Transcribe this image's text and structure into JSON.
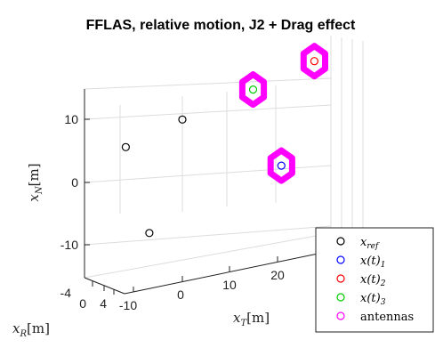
{
  "chart_data": {
    "type": "scatter",
    "title": "FFLAS, relative motion, J2 + Drag effect",
    "axes": {
      "x": {
        "label_main": "x",
        "label_sub": "T",
        "label_unit": "[m]",
        "ticks": [
          "-10",
          "0",
          "10",
          "20"
        ]
      },
      "y": {
        "label_main": "x",
        "label_sub": "R",
        "label_unit": "[m]",
        "ticks": [
          "-4",
          "0",
          "4"
        ]
      },
      "z": {
        "label_main": "x",
        "label_sub": "N",
        "label_unit": "[m]",
        "ticks": [
          "10",
          "0",
          "-10"
        ]
      }
    },
    "grid": true,
    "view": "3d",
    "legend": {
      "placement": "bottom-right",
      "entries": [
        {
          "main": "x",
          "sub": "ref",
          "suffix": "",
          "color": "#000000"
        },
        {
          "main": "x(t)",
          "sub": "1",
          "suffix": "",
          "color": "#0000ff"
        },
        {
          "main": "x(t)",
          "sub": "2",
          "suffix": "",
          "color": "#ff0000"
        },
        {
          "main": "x(t)",
          "sub": "3",
          "suffix": "",
          "color": "#00cc00"
        },
        {
          "main": "antennas",
          "sub": "",
          "suffix": "",
          "color": "#ff00ff"
        }
      ]
    },
    "series": [
      {
        "name": "x_ref",
        "color": "#000000",
        "points": [
          {
            "xT": -12,
            "xR": 0,
            "xN": 5
          },
          {
            "xT": 0,
            "xR": 0,
            "xN": 7
          },
          {
            "xT": -7,
            "xR": 0,
            "xN": -5
          }
        ]
      },
      {
        "name": "x(t)_1",
        "color": "#0000ff",
        "points": [
          {
            "xT": 21,
            "xR": 0,
            "xN": 0
          }
        ]
      },
      {
        "name": "x(t)_2",
        "color": "#ff0000",
        "points": [
          {
            "xT": 28,
            "xR": 0,
            "xN": 11
          }
        ]
      },
      {
        "name": "x(t)_3",
        "color": "#00cc00",
        "points": [
          {
            "xT": 15,
            "xR": 0,
            "xN": 9
          }
        ]
      },
      {
        "name": "antennas",
        "color": "#ff00ff",
        "marker": "hexagon",
        "points": [
          {
            "xT": 21,
            "xR": 0,
            "xN": 0
          },
          {
            "xT": 28,
            "xR": 0,
            "xN": 11
          },
          {
            "xT": 15,
            "xR": 0,
            "xN": 9
          }
        ]
      }
    ]
  }
}
